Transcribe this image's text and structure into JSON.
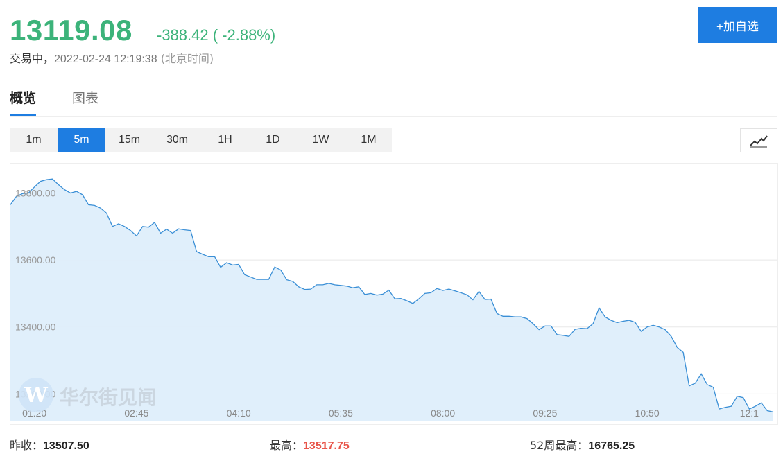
{
  "quote": {
    "price": "13119.08",
    "change": "-388.42 ( -2.88%)",
    "status": "交易中，",
    "timestamp": "2022-02-24 12:19:38",
    "timezone": "(北京时间)"
  },
  "actions": {
    "add_watchlist": "+加自选"
  },
  "tabs": [
    {
      "label": "概览",
      "active": true
    },
    {
      "label": "图表",
      "active": false
    }
  ],
  "periods": [
    {
      "label": "1m",
      "active": false
    },
    {
      "label": "5m",
      "active": true
    },
    {
      "label": "15m",
      "active": false
    },
    {
      "label": "30m",
      "active": false
    },
    {
      "label": "1H",
      "active": false
    },
    {
      "label": "1D",
      "active": false
    },
    {
      "label": "1W",
      "active": false
    },
    {
      "label": "1M",
      "active": false
    }
  ],
  "chart_type_icon": "line-chart-icon",
  "watermark": "华尔街见闻",
  "colors": {
    "down": "#3cb37a",
    "up": "#e8554a",
    "accent": "#1e7de1",
    "line": "#3a8fd6",
    "fill": "#deeefb"
  },
  "stats": [
    {
      "label": "昨收：",
      "value": "13507.50",
      "color": "default"
    },
    {
      "label": "最高：",
      "value": "13517.75",
      "color": "up"
    },
    {
      "label": "52周最高：",
      "value": "16765.25",
      "color": "default"
    }
  ],
  "chart_data": {
    "type": "area",
    "ylim": [
      13120,
      13890
    ],
    "yticks": [
      "13800.00",
      "13600.00",
      "13400.00",
      "13200.00"
    ],
    "ytick_values": [
      13800,
      13600,
      13400,
      13200
    ],
    "xticks": [
      "01:20",
      "02:45",
      "04:10",
      "05:35",
      "08:00",
      "09:25",
      "10:50",
      "12:1"
    ],
    "xtick_positions": [
      4,
      21,
      38,
      55,
      72,
      89,
      106,
      123
    ],
    "grid": true,
    "series": [
      {
        "values": [
          13765,
          13790,
          13798,
          13800,
          13818,
          13835,
          13840,
          13842,
          13825,
          13810,
          13800,
          13805,
          13795,
          13765,
          13763,
          13755,
          13740,
          13700,
          13708,
          13700,
          13688,
          13672,
          13700,
          13698,
          13712,
          13680,
          13692,
          13680,
          13693,
          13690,
          13688,
          13625,
          13617,
          13610,
          13610,
          13578,
          13592,
          13585,
          13587,
          13556,
          13549,
          13542,
          13542,
          13542,
          13579,
          13570,
          13541,
          13536,
          13520,
          13512,
          13513,
          13526,
          13526,
          13530,
          13526,
          13524,
          13522,
          13517,
          13520,
          13497,
          13500,
          13495,
          13498,
          13510,
          13484,
          13485,
          13478,
          13470,
          13484,
          13500,
          13502,
          13515,
          13509,
          13513,
          13508,
          13502,
          13496,
          13481,
          13506,
          13482,
          13483,
          13440,
          13432,
          13432,
          13430,
          13430,
          13425,
          13410,
          13392,
          13403,
          13403,
          13377,
          13375,
          13372,
          13393,
          13396,
          13395,
          13410,
          13457,
          13430,
          13420,
          13413,
          13417,
          13420,
          13414,
          13387,
          13400,
          13405,
          13400,
          13392,
          13372,
          13339,
          13324,
          13224,
          13232,
          13260,
          13228,
          13220,
          13155,
          13160,
          13163,
          13193,
          13189,
          13155,
          13163,
          13173,
          13150,
          13146
        ]
      }
    ]
  }
}
